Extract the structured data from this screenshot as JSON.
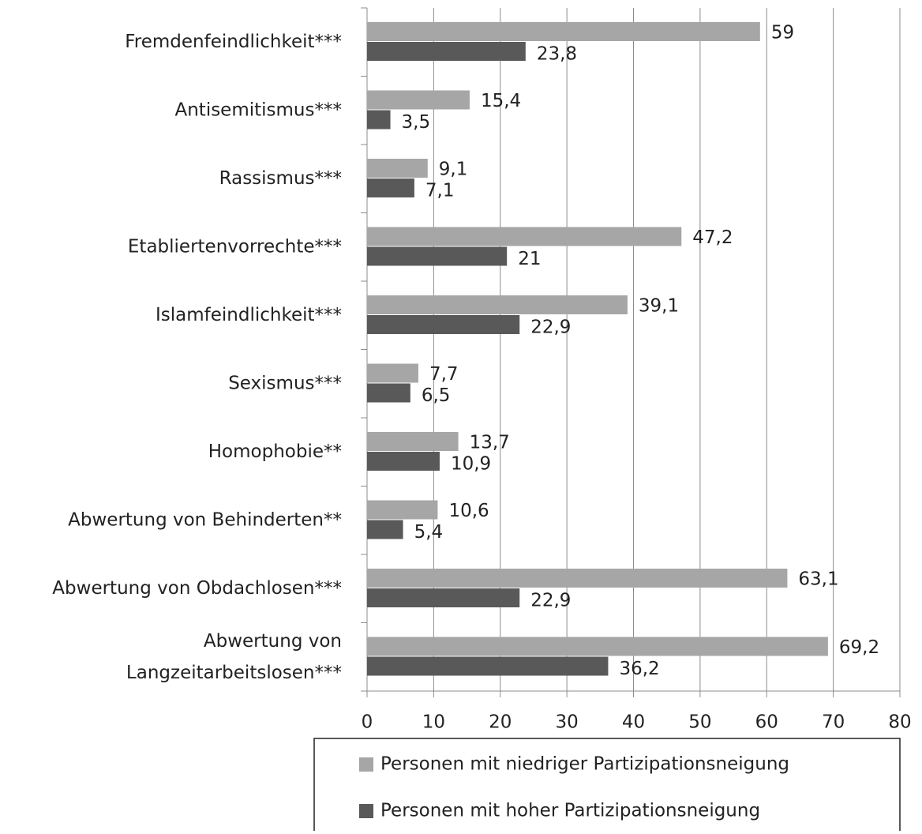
{
  "chart_data": {
    "type": "hbar",
    "categories": [
      "Fremdenfeindlichkeit***",
      "Antisemitismus***",
      "Rassismus***",
      "Etabliertenvorrechte***",
      "Islamfeindlichkeit***",
      "Sexismus***",
      "Homophobie**",
      "Abwertung von Behinderten**",
      "Abwertung von Obdachlosen***",
      "Abwertung von\nLangzeitarbeitslosen***"
    ],
    "series": [
      {
        "name": "Personen mit niedriger Partizipationsneigung",
        "color": "#a6a6a6",
        "values": [
          59,
          15.4,
          9.1,
          47.2,
          39.1,
          7.7,
          13.7,
          10.6,
          63.1,
          69.2
        ],
        "value_labels": [
          "59",
          "15,4",
          "9,1",
          "47,2",
          "39,1",
          "7,7",
          "13,7",
          "10,6",
          "63,1",
          "69,2"
        ]
      },
      {
        "name": "Personen mit hoher Partizipationsneigung",
        "color": "#595959",
        "values": [
          23.8,
          3.5,
          7.1,
          21,
          22.9,
          6.5,
          10.9,
          5.4,
          22.9,
          36.2
        ],
        "value_labels": [
          "23,8",
          "3,5",
          "7,1",
          "21",
          "22,9",
          "6,5",
          "10,9",
          "5,4",
          "22,9",
          "36,2"
        ]
      }
    ],
    "xlim": [
      0,
      80
    ],
    "xticks": [
      0,
      10,
      20,
      30,
      40,
      50,
      60,
      70,
      80
    ],
    "grid": true,
    "legend": "bottom"
  }
}
